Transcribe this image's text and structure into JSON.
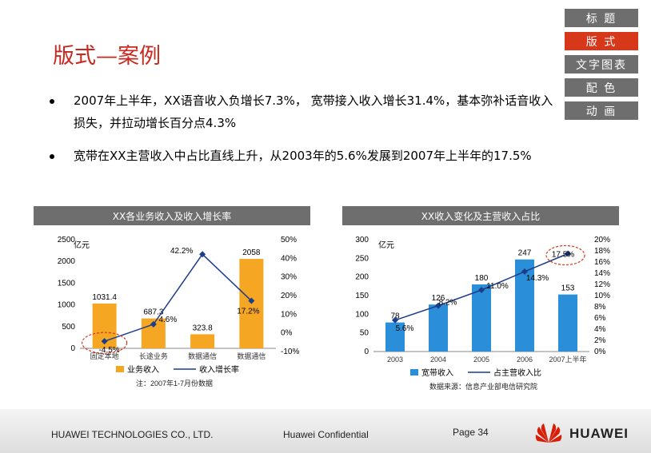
{
  "nav": {
    "items": [
      "标 题",
      "版 式",
      "文字图表",
      "配 色",
      "动 画"
    ]
  },
  "title": "版式—案例",
  "bullets": [
    "2007年上半年，XX语音收入负增长7.3%， 宽带接入收入增长31.4%，基本弥补话音收入损失，并拉动增长百分点4.3%",
    "宽带在XX主营收入中占比直线上升，从2003年的5.6%发展到2007年上半年的17.5%"
  ],
  "chart_data": [
    {
      "type": "bar",
      "title": "XX各业务收入及收入增长率",
      "unit": "亿元",
      "categories": [
        "固定本地",
        "长途业务",
        "数据通信",
        "数据通信"
      ],
      "series": [
        {
          "name": "业务收入",
          "values": [
            1031.4,
            687.3,
            323.8,
            2058
          ],
          "labels": [
            "1031.4",
            "687.3",
            "323.8",
            "2058"
          ]
        },
        {
          "name": "收入增长率",
          "type": "line",
          "values": [
            -4.5,
            4.6,
            42.2,
            17.2
          ],
          "labels": [
            "-4.5%",
            "4.6%",
            "42.2%",
            "17.2%"
          ]
        }
      ],
      "y_ticks": [
        "2500",
        "2000",
        "1500",
        "1000",
        "500",
        "0"
      ],
      "y2_ticks": [
        "50%",
        "40%",
        "30%",
        "20%",
        "10%",
        "0%",
        "-10%"
      ],
      "ylim": [
        0,
        2500
      ],
      "y2lim": [
        -10,
        50
      ],
      "note": "注：2007年1-7月份数据"
    },
    {
      "type": "bar",
      "title": "XX收入变化及主营收入占比",
      "unit": "亿元",
      "categories": [
        "2003",
        "2004",
        "2005",
        "2006",
        "2007上半年"
      ],
      "series": [
        {
          "name": "宽带收入",
          "values": [
            78,
            126,
            180,
            247,
            153
          ],
          "labels": [
            "78",
            "126",
            "180",
            "247",
            "153"
          ]
        },
        {
          "name": "占主营收入比",
          "type": "line",
          "values": [
            5.6,
            8.2,
            11.0,
            14.3,
            17.5
          ],
          "labels": [
            "5.6%",
            "8.2%",
            "11.0%",
            "14.3%",
            "17.5%"
          ]
        }
      ],
      "y_ticks": [
        "300",
        "250",
        "200",
        "150",
        "100",
        "50",
        "0"
      ],
      "y2_ticks": [
        "20%",
        "18%",
        "16%",
        "14%",
        "12%",
        "10%",
        "8%",
        "6%",
        "4%",
        "2%",
        "0%"
      ],
      "ylim": [
        0,
        300
      ],
      "y2lim": [
        0,
        20
      ],
      "note": "数据来源：信息产业部电信研究院"
    }
  ],
  "footer": {
    "company": "HUAWEI TECHNOLOGIES CO., LTD.",
    "confidential": "Huawei Confidential",
    "page": "Page 34",
    "brand": "HUAWEI"
  },
  "colors": {
    "bar": "#f5a623",
    "bar2": "#2a8fd8",
    "line": "#1c3d8a",
    "nav_active": "#d8381a",
    "title": "#c8281e"
  }
}
